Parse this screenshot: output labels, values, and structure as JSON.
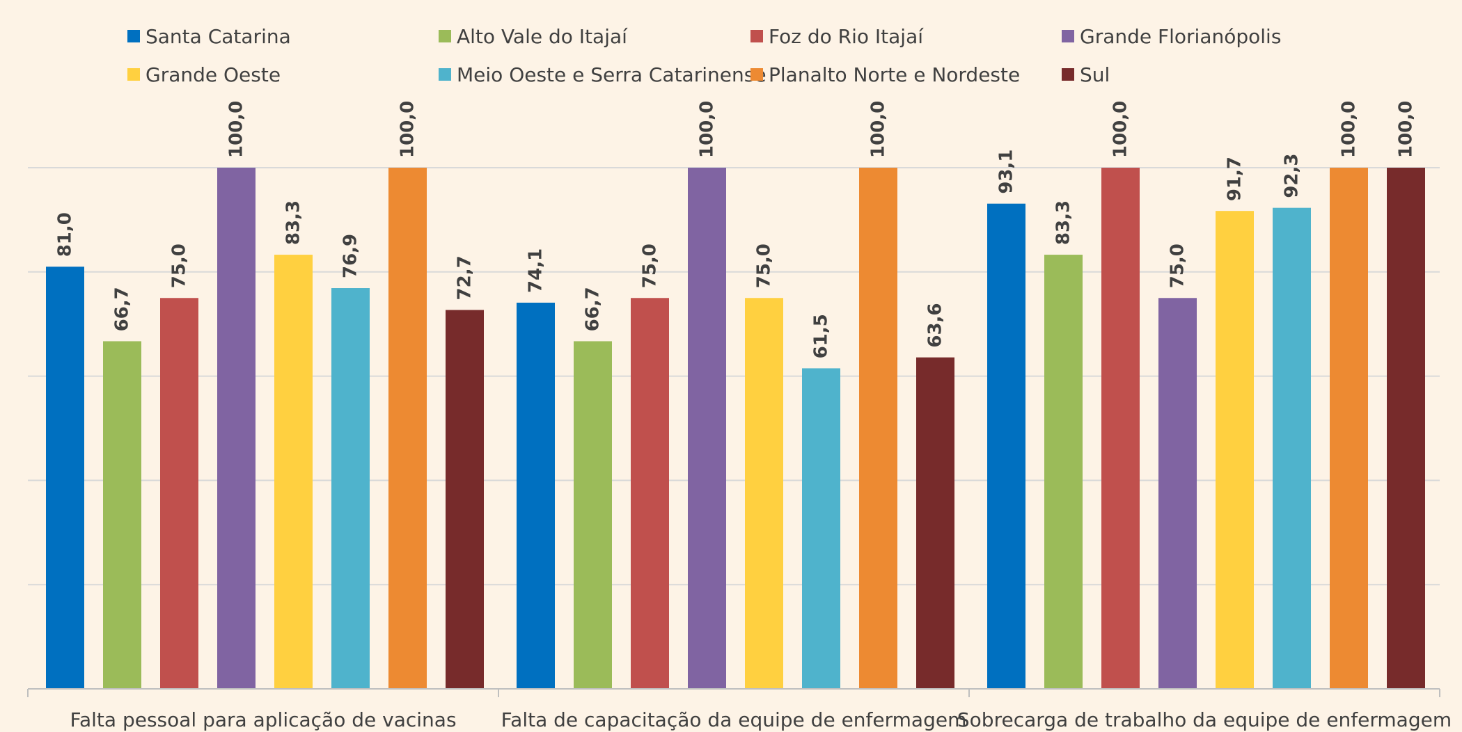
{
  "chart_data": {
    "type": "bar",
    "categories": [
      "Falta pessoal para aplicação de vacinas",
      "Falta de capacitação da equipe de enfermagem",
      "Sobrecarga de trabalho da equipe de enfermagem"
    ],
    "series": [
      {
        "name": "Santa Catarina",
        "color": "#0070c0",
        "values": [
          81.0,
          74.1,
          93.1
        ],
        "labels": [
          "81,0",
          "74,1",
          "93,1"
        ]
      },
      {
        "name": "Alto Vale do Itajaí",
        "color": "#9bbb59",
        "values": [
          66.7,
          66.7,
          83.3
        ],
        "labels": [
          "66,7",
          "66,7",
          "83,3"
        ]
      },
      {
        "name": "Foz do Rio Itajaí",
        "color": "#c0504d",
        "values": [
          75.0,
          75.0,
          100.0
        ],
        "labels": [
          "75,0",
          "75,0",
          "100,0"
        ]
      },
      {
        "name": "Grande Florianópolis",
        "color": "#8064a2",
        "values": [
          100.0,
          100.0,
          75.0
        ],
        "labels": [
          "100,0",
          "100,0",
          "75,0"
        ]
      },
      {
        "name": "Grande Oeste",
        "color": "#ffd040",
        "values": [
          83.3,
          75.0,
          91.7
        ],
        "labels": [
          "83,3",
          "75,0",
          "91,7"
        ]
      },
      {
        "name": "Meio Oeste e Serra Catarinense",
        "color": "#4fb3cc",
        "values": [
          76.9,
          61.5,
          92.3
        ],
        "labels": [
          "76,9",
          "61,5",
          "92,3"
        ]
      },
      {
        "name": "Planalto Norte e Nordeste",
        "color": "#ed8a32",
        "values": [
          100.0,
          100.0,
          100.0
        ],
        "labels": [
          "100,0",
          "100,0",
          "100,0"
        ]
      },
      {
        "name": "Sul",
        "color": "#772b2b",
        "values": [
          72.7,
          63.6,
          100.0
        ],
        "labels": [
          "72,7",
          "63,6",
          "100,0"
        ]
      }
    ],
    "ylim": [
      0,
      100
    ],
    "grid": true,
    "legend_position": "top"
  }
}
